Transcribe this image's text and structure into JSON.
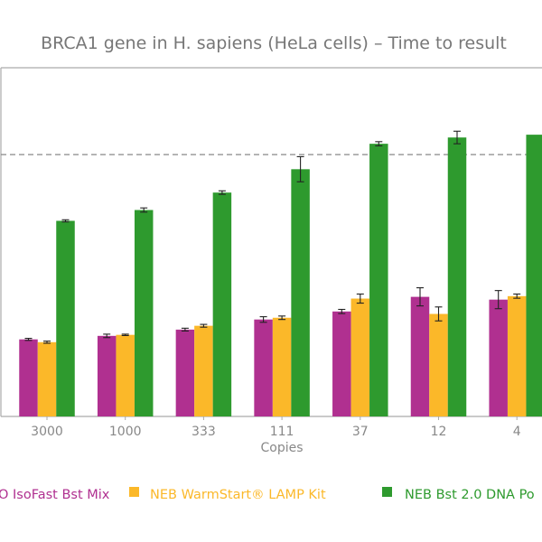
{
  "chart_data": {
    "type": "bar",
    "title": "BRCA1 gene in H. sapiens (HeLa cells) – Time to result",
    "xlabel": "Copies",
    "ylabel": "",
    "categories": [
      "3000",
      "1000",
      "333",
      "111",
      "37",
      "12",
      "4"
    ],
    "ylim": [
      0,
      100
    ],
    "reference_line": 75.1,
    "grid": false,
    "legend_position": "bottom",
    "series": [
      {
        "name": "O IsoFast Bst Mix",
        "color": "#b03090",
        "values": [
          22.1,
          23.1,
          24.9,
          27.8,
          30.1,
          34.3,
          33.5
        ],
        "errors": [
          0.3,
          0.5,
          0.4,
          0.8,
          0.6,
          2.6,
          2.6
        ]
      },
      {
        "name": "NEB WarmStart® LAMP Kit",
        "color": "#fbb829",
        "values": [
          21.3,
          23.4,
          26.0,
          28.3,
          33.8,
          29.4,
          34.5
        ],
        "errors": [
          0.3,
          0.2,
          0.4,
          0.5,
          1.3,
          2.0,
          0.6
        ]
      },
      {
        "name": "NEB Bst 2.0 DNA Po",
        "color": "#2e9a2e",
        "values": [
          56.1,
          59.2,
          64.2,
          70.9,
          78.2,
          80.0,
          80.8
        ],
        "errors": [
          0.3,
          0.6,
          0.5,
          3.6,
          0.6,
          1.8,
          0.0
        ]
      }
    ]
  }
}
